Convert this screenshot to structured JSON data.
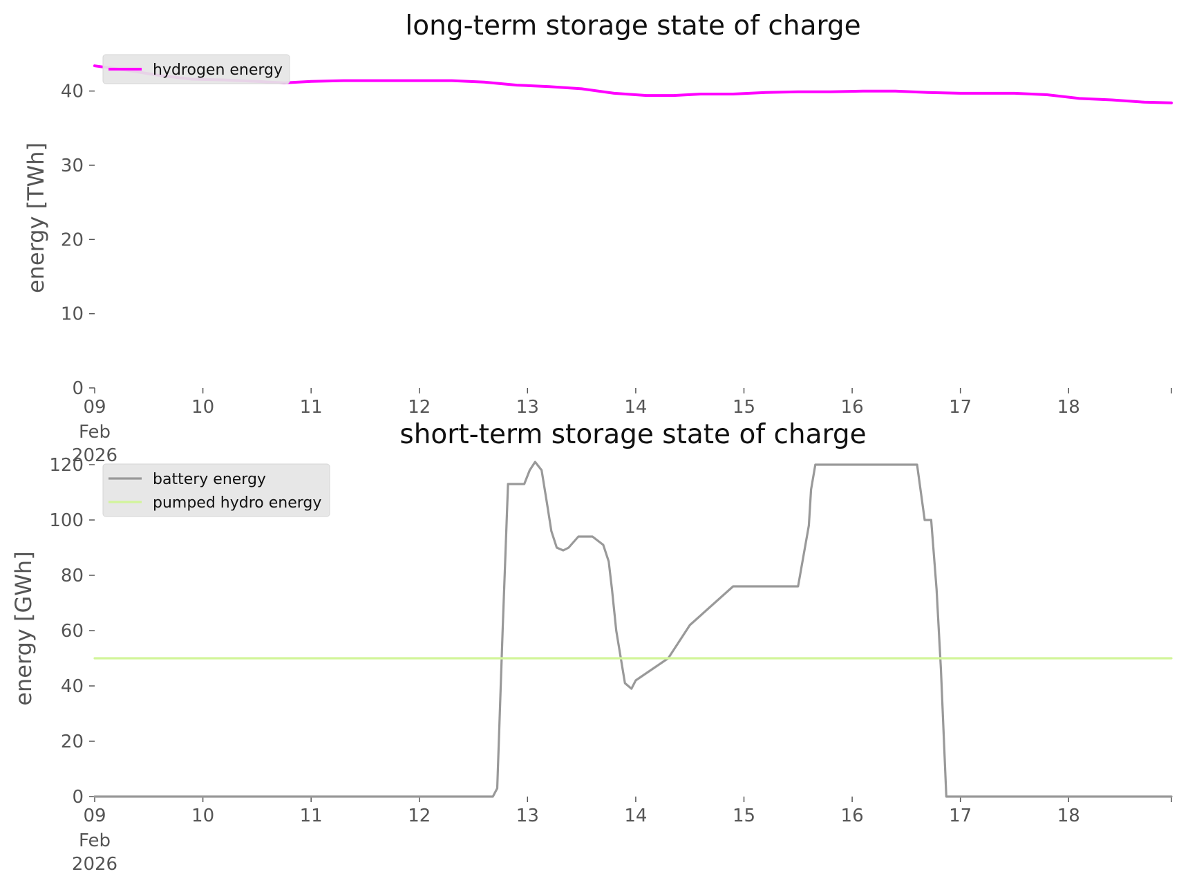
{
  "chart_data": [
    {
      "type": "line",
      "title": "long-term storage state of charge",
      "xlabel": "",
      "ylabel": "energy [TWh]",
      "x_ticks": [
        "09",
        "10",
        "11",
        "12",
        "13",
        "14",
        "15",
        "16",
        "17",
        "18"
      ],
      "x_tick_sub": [
        "Feb",
        "2026"
      ],
      "ylim": [
        0,
        45
      ],
      "yticks": [
        0,
        10,
        20,
        30,
        40
      ],
      "xlim": [
        0,
        9.95
      ],
      "x_unit": "days since 09 Feb 2026",
      "legend": "top-left",
      "grid": false,
      "series": [
        {
          "name": "hydrogen energy",
          "color": "#ff00ff",
          "x": [
            0,
            0.3,
            0.6,
            0.9,
            1.2,
            1.5,
            1.75,
            2.0,
            2.3,
            2.6,
            2.9,
            3.1,
            3.3,
            3.6,
            3.9,
            4.2,
            4.5,
            4.8,
            5.1,
            5.35,
            5.6,
            5.9,
            6.2,
            6.5,
            6.8,
            7.1,
            7.4,
            7.7,
            8.0,
            8.2,
            8.5,
            8.8,
            9.1,
            9.4,
            9.7,
            9.95
          ],
          "y": [
            43.4,
            42.8,
            42.1,
            41.6,
            41.5,
            41.3,
            41.1,
            41.3,
            41.4,
            41.4,
            41.4,
            41.4,
            41.4,
            41.2,
            40.8,
            40.6,
            40.3,
            39.7,
            39.4,
            39.4,
            39.6,
            39.6,
            39.8,
            39.9,
            39.9,
            40.0,
            40.0,
            39.8,
            39.7,
            39.7,
            39.7,
            39.5,
            39.0,
            38.8,
            38.5,
            38.4
          ]
        }
      ]
    },
    {
      "type": "line",
      "title": "short-term storage state of charge",
      "xlabel": "",
      "ylabel": "energy [GWh]",
      "x_ticks": [
        "09",
        "10",
        "11",
        "12",
        "13",
        "14",
        "15",
        "16",
        "17",
        "18"
      ],
      "x_tick_sub": [
        "Feb",
        "2026"
      ],
      "ylim": [
        0,
        120
      ],
      "yticks": [
        0,
        20,
        40,
        60,
        80,
        100,
        120
      ],
      "xlim": [
        0,
        9.95
      ],
      "x_unit": "days since 09 Feb 2026",
      "legend": "top-left",
      "grid": false,
      "series": [
        {
          "name": "battery energy",
          "color": "#999999",
          "x": [
            0,
            1.0,
            1.5,
            2.0,
            2.5,
            2.71,
            3.0,
            3.15,
            3.25,
            3.3,
            3.35,
            3.45,
            3.5,
            3.55,
            3.6,
            3.63,
            3.68,
            3.72,
            3.77,
            3.82,
            3.87,
            3.92,
            3.97,
            4.02,
            4.07,
            4.13,
            4.18,
            4.22,
            4.27,
            4.33,
            4.38,
            4.47,
            4.6,
            4.7,
            4.75,
            4.78,
            4.82,
            4.9,
            4.96,
            5.0,
            5.3,
            5.5,
            5.9,
            6.3,
            6.5,
            6.6,
            6.62,
            6.66,
            6.72,
            6.8,
            6.9,
            7.0,
            7.3,
            7.5,
            7.55,
            7.6,
            7.67,
            7.73,
            7.78,
            7.82,
            7.87,
            7.95,
            8.02,
            8.07,
            8.12,
            8.25,
            8.4,
            8.5,
            8.6,
            8.65,
            8.7,
            8.78,
            8.85,
            8.9,
            8.95,
            9.0,
            9.1,
            9.3,
            9.5,
            9.95
          ],
          "y": [
            0,
            0,
            0,
            0,
            0,
            0,
            0,
            0,
            0,
            0,
            0,
            0,
            0,
            0,
            0,
            0,
            0,
            3,
            60,
            113,
            113,
            113,
            113,
            118,
            121,
            118,
            106,
            96,
            90,
            89,
            90,
            94,
            94,
            91,
            85,
            75,
            60,
            41,
            39,
            42,
            50,
            62,
            76,
            76,
            76,
            98,
            111,
            120,
            120,
            120,
            120,
            120,
            120,
            120,
            120,
            120,
            100,
            100,
            75,
            46,
            0,
            0,
            0,
            0,
            0,
            0,
            0,
            0,
            0,
            0,
            0,
            0,
            0,
            0,
            0,
            0,
            0,
            0,
            0,
            0
          ]
        },
        {
          "name": "pumped hydro energy",
          "color": "#d2f59b",
          "x": [
            0,
            0.5,
            1.0,
            1.5,
            1.95,
            2.05,
            2.15,
            2.35,
            2.5,
            2.6,
            2.75,
            3.05,
            3.2,
            3.3,
            3.5,
            3.73,
            3.85,
            4.0,
            4.2,
            4.5,
            4.8,
            5.0,
            5.5,
            5.75,
            5.8,
            6.0,
            6.2,
            6.4,
            6.55,
            6.6,
            6.7,
            6.8,
            6.9,
            7.1,
            7.35,
            7.45,
            7.5,
            7.55,
            7.6,
            7.7,
            7.75,
            7.8,
            7.85,
            7.9,
            8.0,
            8.2,
            8.4,
            8.6,
            8.8,
            9.0,
            9.1,
            9.2,
            9.5,
            9.95
          ],
          "y": [
            50,
            50,
            50,
            50,
            50,
            50,
            50,
            50,
            50,
            50,
            50,
            50,
            50,
            50,
            50,
            50,
            50,
            50,
            50,
            50,
            50,
            50,
            50,
            50,
            50,
            50,
            50,
            50,
            50,
            50,
            50,
            50,
            50,
            50,
            50,
            50,
            50,
            50,
            50,
            50,
            50,
            50,
            50,
            50,
            50,
            50,
            50,
            50,
            50,
            50,
            50,
            50,
            50,
            50
          ]
        }
      ]
    }
  ]
}
